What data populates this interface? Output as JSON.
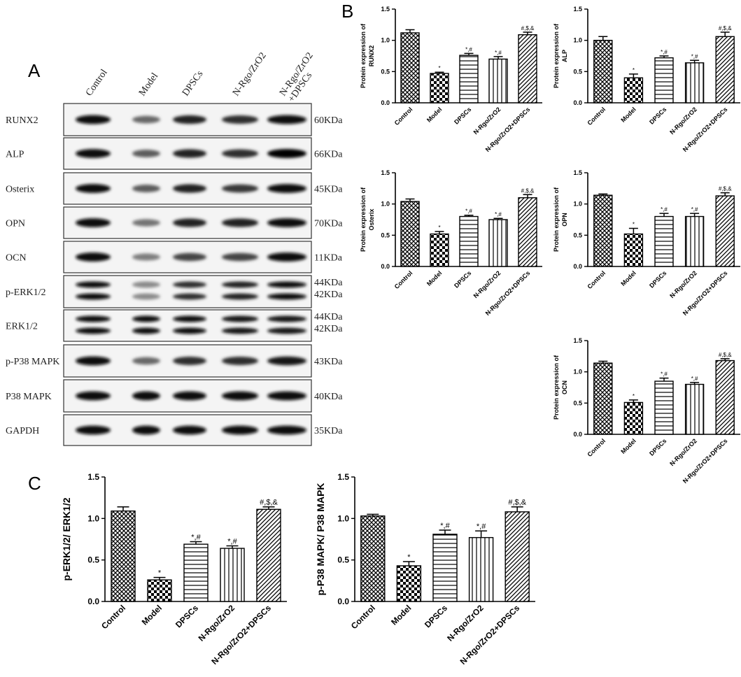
{
  "panels": {
    "a": "A",
    "b": "B",
    "c": "C"
  },
  "blot": {
    "lanes": [
      "Control",
      "Model",
      "DPSCs",
      "N-Rgo/ZrO2",
      "N-Rgo/ZrO2\n+DPSCs"
    ],
    "rows": [
      {
        "label": "RUNX2",
        "kda": [
          "60KDa"
        ],
        "bands": 1,
        "intensity": [
          0.95,
          0.55,
          0.85,
          0.8,
          0.95
        ]
      },
      {
        "label": "ALP",
        "kda": [
          "66KDa"
        ],
        "bands": 1,
        "intensity": [
          0.95,
          0.6,
          0.85,
          0.8,
          1.0
        ]
      },
      {
        "label": "Osterix",
        "kda": [
          "45KDa"
        ],
        "bands": 1,
        "intensity": [
          0.95,
          0.6,
          0.85,
          0.75,
          0.95
        ]
      },
      {
        "label": "OPN",
        "kda": [
          "70KDa"
        ],
        "bands": 1,
        "intensity": [
          0.95,
          0.5,
          0.85,
          0.85,
          0.95
        ]
      },
      {
        "label": "OCN",
        "kda": [
          "11KDa"
        ],
        "bands": 1,
        "intensity": [
          0.95,
          0.45,
          0.7,
          0.7,
          0.95
        ]
      },
      {
        "label": "p-ERK1/2",
        "kda": [
          "44KDa",
          "42KDa"
        ],
        "bands": 2,
        "intensity": [
          0.95,
          0.4,
          0.8,
          0.85,
          0.95
        ]
      },
      {
        "label": "ERK1/2",
        "kda": [
          "44KDa",
          "42KDa"
        ],
        "bands": 2,
        "intensity": [
          0.95,
          0.95,
          0.95,
          0.9,
          0.9
        ]
      },
      {
        "label": "p-P38 MAPK",
        "kda": [
          "43KDa"
        ],
        "bands": 1,
        "intensity": [
          0.95,
          0.55,
          0.8,
          0.8,
          0.9
        ]
      },
      {
        "label": "P38 MAPK",
        "kda": [
          "40KDa"
        ],
        "bands": 1,
        "intensity": [
          0.95,
          0.95,
          0.95,
          0.95,
          0.95
        ]
      },
      {
        "label": "GAPDH",
        "kda": [
          "35KDa"
        ],
        "bands": 1,
        "intensity": [
          0.95,
          0.95,
          0.95,
          0.95,
          0.95
        ]
      }
    ]
  },
  "chart_data": [
    {
      "type": "bar",
      "title": "",
      "ylabel": "Protein expression of\nRUNX2",
      "xlabel": "",
      "categories": [
        "Control",
        "Model",
        "DPSCs",
        "N-Rgo/ZrO2",
        "N-Rgo/ZrO2+DPSCs"
      ],
      "values": [
        1.12,
        0.47,
        0.76,
        0.7,
        1.09
      ],
      "errors": [
        0.05,
        0.02,
        0.03,
        0.04,
        0.04
      ],
      "annotations": [
        "",
        "*",
        "*,#",
        "*,#",
        "#,$,&"
      ],
      "ylim": [
        0,
        1.5
      ],
      "yticks": [
        "0.0",
        "0.5",
        "1.0",
        "1.5"
      ]
    },
    {
      "type": "bar",
      "title": "",
      "ylabel": "Protein expression of\nALP",
      "xlabel": "",
      "categories": [
        "Control",
        "Model",
        "DPSCs",
        "N-Rgo/ZrO2",
        "N-Rgo/ZrO2+DPSCs"
      ],
      "values": [
        1.0,
        0.4,
        0.72,
        0.64,
        1.06
      ],
      "errors": [
        0.06,
        0.06,
        0.03,
        0.04,
        0.07
      ],
      "annotations": [
        "",
        "*",
        "*,#",
        "*,#",
        "#,$,&"
      ],
      "ylim": [
        0,
        1.5
      ],
      "yticks": [
        "0.0",
        "0.5",
        "1.0",
        "1.5"
      ]
    },
    {
      "type": "bar",
      "title": "",
      "ylabel": "Protein expression of\nOsterix",
      "xlabel": "",
      "categories": [
        "Control",
        "Model",
        "DPSCs",
        "N-Rgo/ZrO2",
        "N-Rgo/ZrO2+DPSCs"
      ],
      "values": [
        1.04,
        0.52,
        0.8,
        0.75,
        1.1
      ],
      "errors": [
        0.04,
        0.04,
        0.02,
        0.02,
        0.05
      ],
      "annotations": [
        "",
        "*",
        "*,#",
        "*,#",
        "#,$,&"
      ],
      "ylim": [
        0,
        1.5
      ],
      "yticks": [
        "0.0",
        "0.5",
        "1.0",
        "1.5"
      ]
    },
    {
      "type": "bar",
      "title": "",
      "ylabel": "Protein expression of\nOPN",
      "xlabel": "",
      "categories": [
        "Control",
        "Model",
        "DPSCs",
        "N-Rgo/ZrO2",
        "N-Rgo/ZrO2+DPSCs"
      ],
      "values": [
        1.14,
        0.52,
        0.8,
        0.8,
        1.13
      ],
      "errors": [
        0.02,
        0.09,
        0.05,
        0.05,
        0.05
      ],
      "annotations": [
        "",
        "*",
        "*,#",
        "*,#",
        "#,$,&"
      ],
      "ylim": [
        0,
        1.5
      ],
      "yticks": [
        "0.0",
        "0.5",
        "1.0",
        "1.5"
      ]
    },
    {
      "type": "bar",
      "title": "",
      "ylabel": "Protein expression of\nOCN",
      "xlabel": "",
      "categories": [
        "Control",
        "Model",
        "DPSCs",
        "N-Rgo/ZrO2",
        "N-Rgo/ZrO2+DPSCs"
      ],
      "values": [
        1.14,
        0.51,
        0.85,
        0.8,
        1.18
      ],
      "errors": [
        0.03,
        0.04,
        0.05,
        0.03,
        0.03
      ],
      "annotations": [
        "",
        "*",
        "*,#",
        "*,#",
        "#,$,&"
      ],
      "ylim": [
        0,
        1.5
      ],
      "yticks": [
        "0.0",
        "0.5",
        "1.0",
        "1.5"
      ]
    },
    {
      "type": "bar",
      "title": "",
      "ylabel": "p-ERK1/2/ ERK1/2",
      "xlabel": "",
      "categories": [
        "Control",
        "Model",
        "DPSCs",
        "N-Rgo/ZrO2",
        "N-Rgo/ZrO2+DPSCs"
      ],
      "values": [
        1.09,
        0.26,
        0.69,
        0.64,
        1.11
      ],
      "errors": [
        0.05,
        0.03,
        0.03,
        0.03,
        0.03
      ],
      "annotations": [
        "",
        "*",
        "*,#",
        "*,#",
        "#,$,&"
      ],
      "ylim": [
        0,
        1.5
      ],
      "yticks": [
        "0.0",
        "0.5",
        "1.0",
        "1.5"
      ]
    },
    {
      "type": "bar",
      "title": "",
      "ylabel": "p-P38 MAPK/ P38 MAPK",
      "xlabel": "",
      "categories": [
        "Control",
        "Model",
        "DPSCs",
        "N-Rgo/ZrO2",
        "N-Rgo/ZrO2+DPSCs"
      ],
      "values": [
        1.03,
        0.43,
        0.81,
        0.77,
        1.08
      ],
      "errors": [
        0.02,
        0.05,
        0.05,
        0.08,
        0.06
      ],
      "annotations": [
        "",
        "*",
        "*,#",
        "*,#",
        "#,$,&"
      ],
      "ylim": [
        0,
        1.5
      ],
      "yticks": [
        "0.0",
        "0.5",
        "1.0",
        "1.5"
      ]
    }
  ]
}
